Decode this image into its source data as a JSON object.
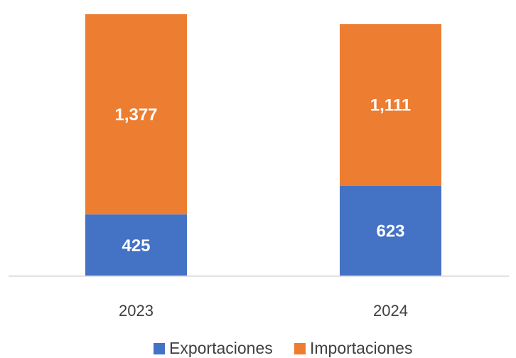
{
  "chart_data": {
    "type": "stacked_bar",
    "categories": [
      "2023",
      "2024"
    ],
    "series": [
      {
        "name": "Exportaciones",
        "color": "#4472c4",
        "values": [
          425,
          623
        ],
        "value_labels": [
          "425",
          "623"
        ]
      },
      {
        "name": "Importaciones",
        "color": "#ed7d31",
        "values": [
          1377,
          1111
        ],
        "value_labels": [
          "1,377",
          "1,111"
        ]
      }
    ]
  }
}
